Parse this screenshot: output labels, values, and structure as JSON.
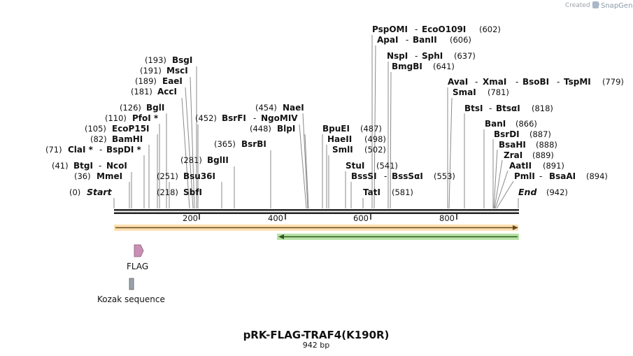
{
  "credit": {
    "created_by": "Created by",
    "brand": "SnapGene"
  },
  "map": {
    "title": "pRK-FLAG-TRAF4(K190R)",
    "length_label": "942 bp",
    "start_label": "Start",
    "end_label": "End",
    "start_pos": "(0)",
    "end_pos": "(942)",
    "ticks": [
      "200",
      "400",
      "600",
      "800"
    ]
  },
  "sites": [
    {
      "pos": "(41)",
      "names": [
        "BtgI",
        "NcoI"
      ]
    },
    {
      "pos": "(36)",
      "names": [
        "MmeI"
      ]
    },
    {
      "pos": "(71)",
      "names": [
        "ClaI *",
        "BspDI *"
      ]
    },
    {
      "pos": "(82)",
      "names": [
        "BamHI"
      ]
    },
    {
      "pos": "(105)",
      "names": [
        "EcoP15I"
      ]
    },
    {
      "pos": "(110)",
      "names": [
        "PfoI *"
      ]
    },
    {
      "pos": "(126)",
      "names": [
        "BglI"
      ]
    },
    {
      "pos": "(181)",
      "names": [
        "AccI"
      ]
    },
    {
      "pos": "(189)",
      "names": [
        "EaeI"
      ]
    },
    {
      "pos": "(191)",
      "names": [
        "MscI"
      ]
    },
    {
      "pos": "(193)",
      "names": [
        "BsgI"
      ]
    },
    {
      "pos": "(251)",
      "names": [
        "Bsu36I"
      ]
    },
    {
      "pos": "(218)",
      "names": [
        "SbfI"
      ]
    },
    {
      "pos": "(281)",
      "names": [
        "BglII"
      ]
    },
    {
      "pos": "(452)",
      "names": [
        "BsrFI",
        "NgoMIV"
      ]
    },
    {
      "pos": "(365)",
      "names": [
        "BsrBI"
      ]
    },
    {
      "pos": "(454)",
      "names": [
        "NaeI"
      ]
    },
    {
      "pos": "(448)",
      "names": [
        "BlpI"
      ]
    },
    {
      "pos": "(487)",
      "names": [
        "BpuEI"
      ]
    },
    {
      "pos": "(498)",
      "names": [
        "HaeII"
      ]
    },
    {
      "pos": "(502)",
      "names": [
        "SmlI"
      ]
    },
    {
      "pos": "(541)",
      "names": [
        "StuI"
      ]
    },
    {
      "pos": "(553)",
      "names": [
        "BssSI",
        "BssSαI"
      ]
    },
    {
      "pos": "(581)",
      "names": [
        "TatI"
      ]
    },
    {
      "pos": "(602)",
      "names": [
        "PspOMI",
        "EcoO109I"
      ]
    },
    {
      "pos": "(606)",
      "names": [
        "ApaI",
        "BanII"
      ]
    },
    {
      "pos": "(637)",
      "names": [
        "NspI",
        "SphI"
      ]
    },
    {
      "pos": "(641)",
      "names": [
        "BmgBI"
      ]
    },
    {
      "pos": "(779)",
      "names": [
        "AvaI",
        "XmaI",
        "BsoBI",
        "TspMI"
      ]
    },
    {
      "pos": "(781)",
      "names": [
        "SmaI"
      ]
    },
    {
      "pos": "(818)",
      "names": [
        "BtsI",
        "BtsαI"
      ]
    },
    {
      "pos": "(866)",
      "names": [
        "BanI"
      ]
    },
    {
      "pos": "(887)",
      "names": [
        "BsrDI"
      ]
    },
    {
      "pos": "(888)",
      "names": [
        "BsaHI"
      ]
    },
    {
      "pos": "(889)",
      "names": [
        "ZraI"
      ]
    },
    {
      "pos": "(891)",
      "names": [
        "AatII"
      ]
    },
    {
      "pos": "(894)",
      "names": [
        "PmlI",
        "BsaAI"
      ]
    }
  ],
  "features": [
    {
      "name": "FLAG"
    },
    {
      "name": "Kozak sequence"
    }
  ],
  "colors": {
    "orange_track": "#f5a623",
    "green_track": "#5fbf3a",
    "flag_feature": "#c98fb5",
    "kozak_feature": "#9aa3aa"
  }
}
